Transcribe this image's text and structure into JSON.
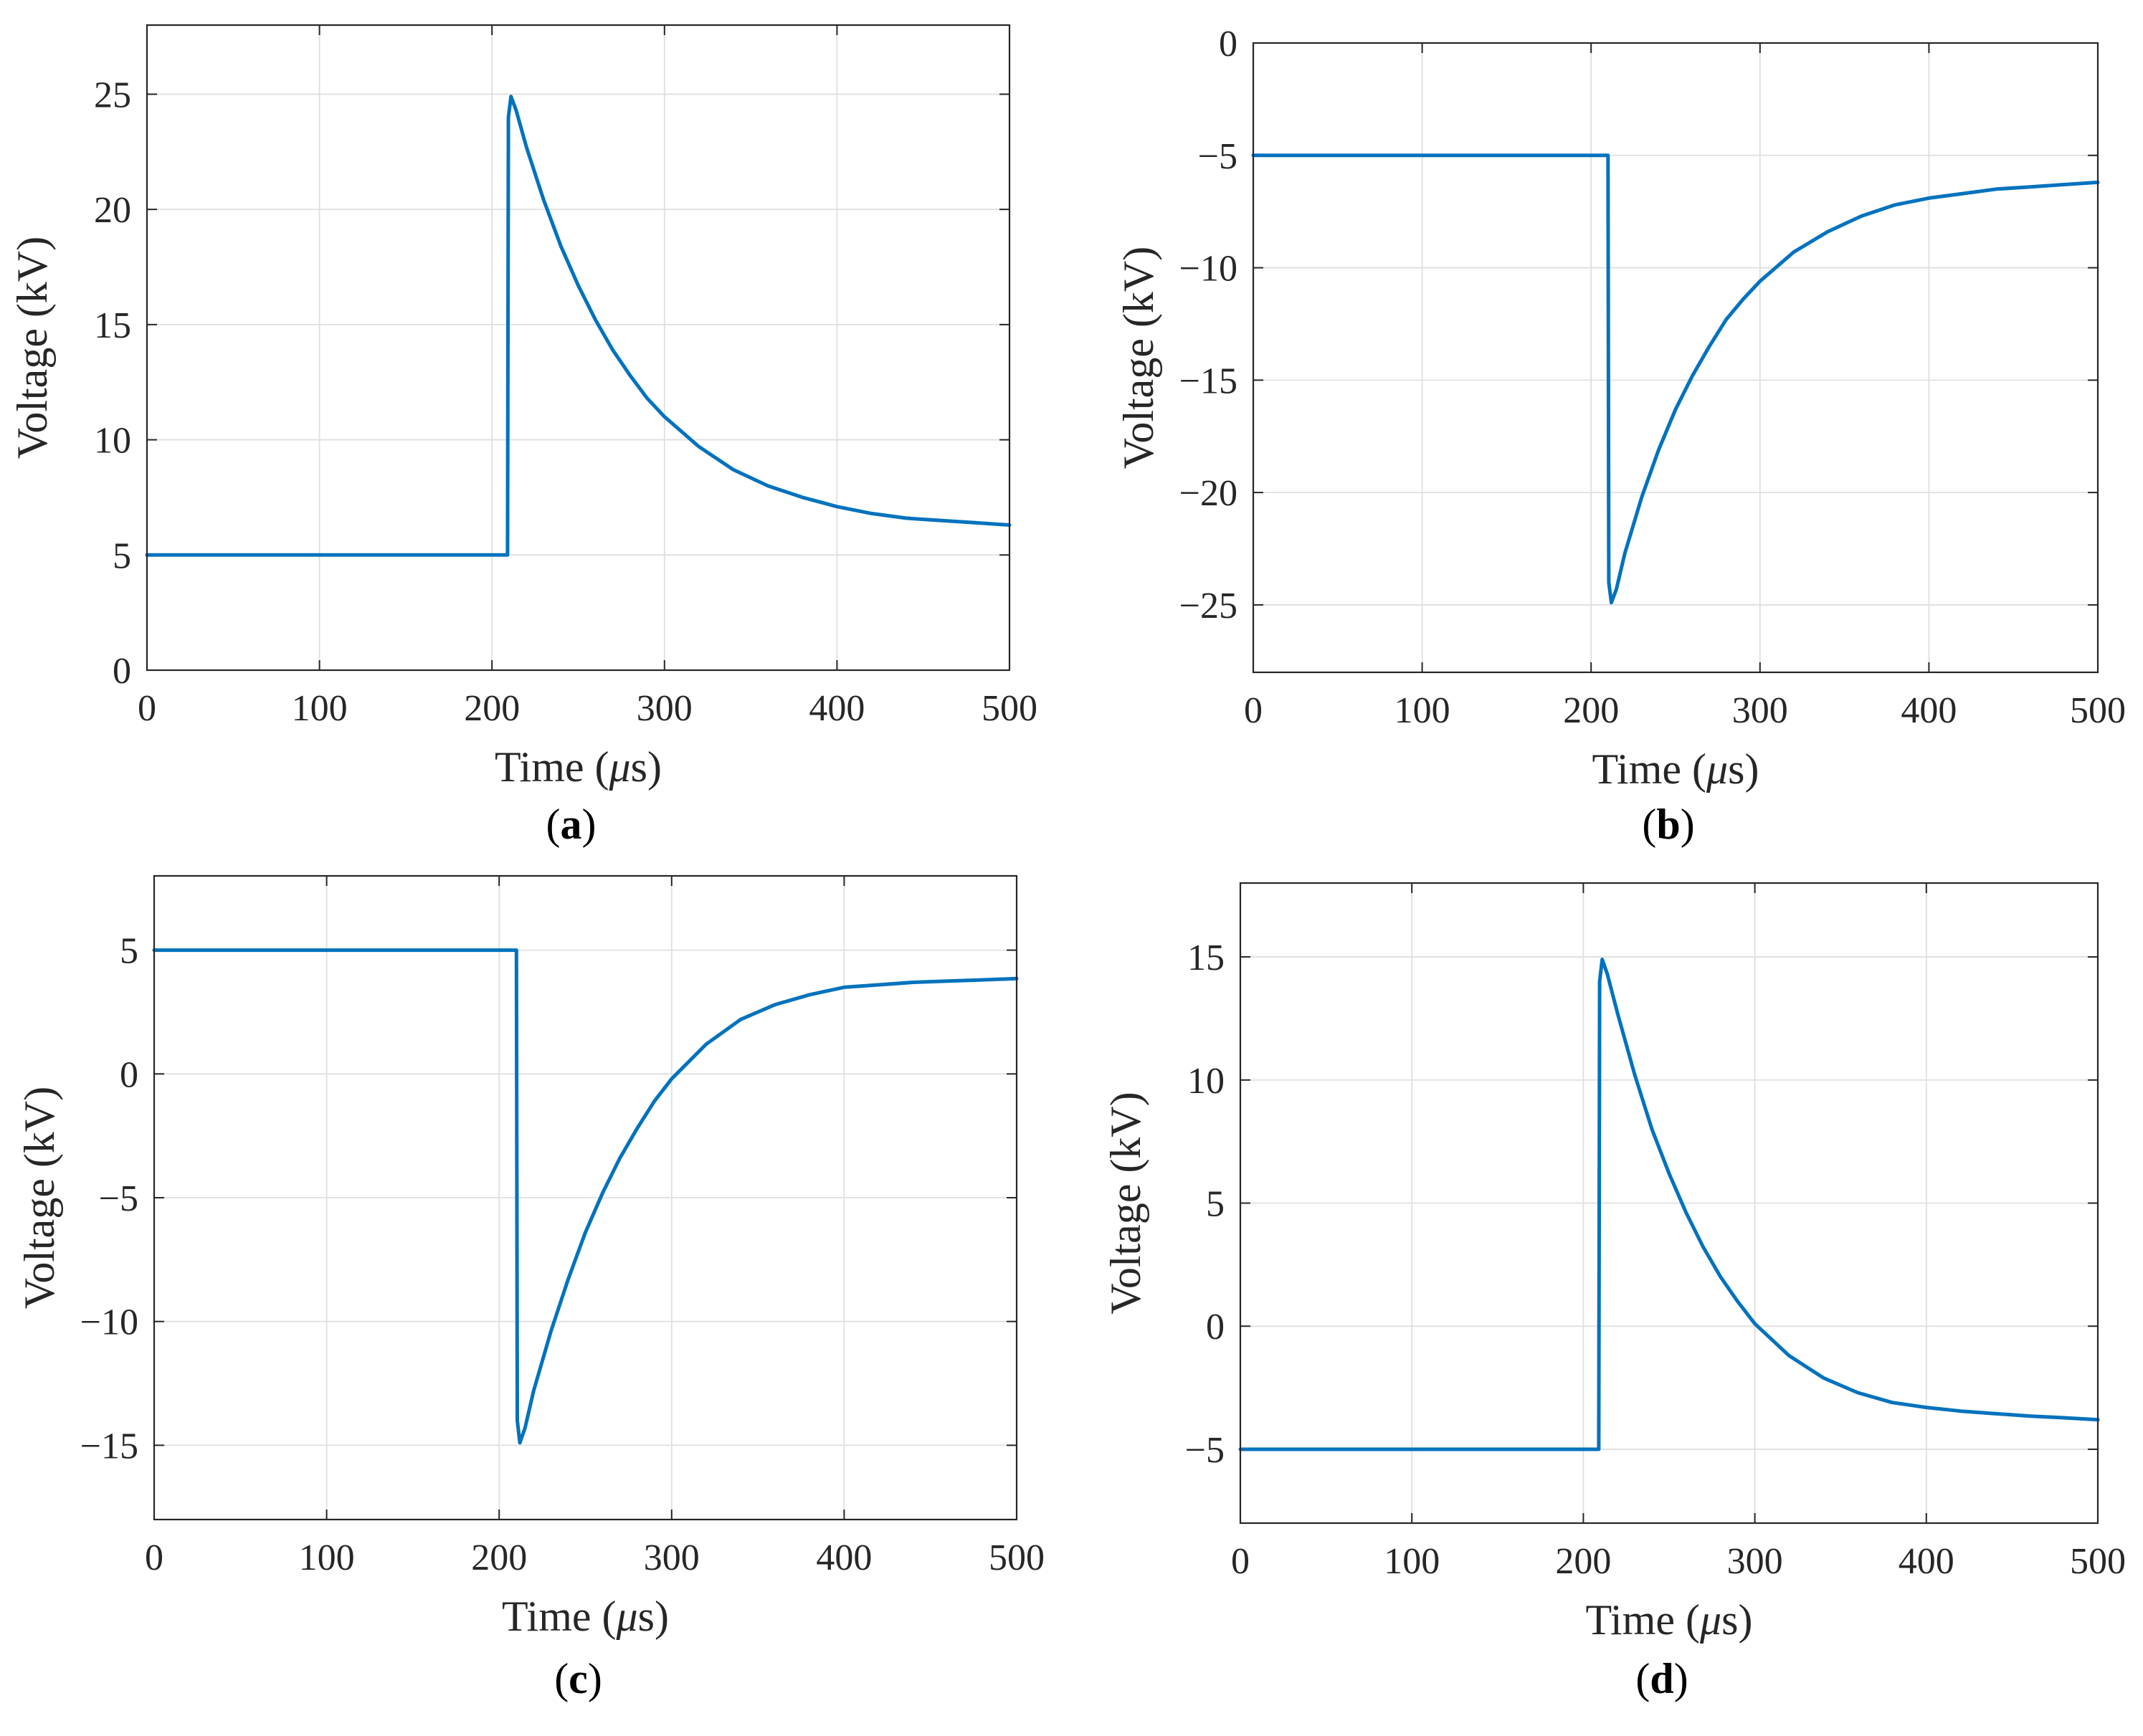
{
  "figure": {
    "line_color": "#0072bd"
  },
  "chart_data": [
    {
      "id": "a",
      "type": "line",
      "caption_letter": "a",
      "xlabel_prefix": "Time (",
      "xlabel_unit": "μ",
      "xlabel_suffix": "s)",
      "ylabel": "Voltage (kV)",
      "xlim": [
        0,
        500
      ],
      "ylim": [
        0,
        28
      ],
      "xticks": [
        0,
        100,
        200,
        300,
        400,
        500
      ],
      "yticks": [
        0,
        5,
        10,
        15,
        20,
        25
      ],
      "ytick_labels": [
        "0",
        "5",
        "10",
        "15",
        "20",
        "25"
      ],
      "grid": true,
      "series": [
        {
          "name": "Voltage",
          "x": [
            0,
            209,
            209.5,
            211,
            214,
            220,
            230,
            240,
            250,
            260,
            270,
            280,
            290,
            300,
            320,
            340,
            360,
            380,
            400,
            420,
            440,
            460,
            480,
            500
          ],
          "y": [
            5,
            5,
            24,
            24.9,
            24.3,
            22.7,
            20.4,
            18.4,
            16.7,
            15.2,
            13.9,
            12.8,
            11.8,
            11.0,
            9.7,
            8.7,
            8.0,
            7.5,
            7.1,
            6.8,
            6.6,
            6.5,
            6.4,
            6.3
          ]
        }
      ]
    },
    {
      "id": "b",
      "type": "line",
      "caption_letter": "b",
      "xlabel_prefix": "Time (",
      "xlabel_unit": "μ",
      "xlabel_suffix": "s)",
      "ylabel": "Voltage (kV)",
      "xlim": [
        0,
        500
      ],
      "ylim": [
        -28,
        0
      ],
      "xticks": [
        0,
        100,
        200,
        300,
        400,
        500
      ],
      "yticks": [
        0,
        -5,
        -10,
        -15,
        -20,
        -25
      ],
      "ytick_labels": [
        "0",
        "−5",
        "−10",
        "−15",
        "−20",
        "−25"
      ],
      "grid": true,
      "series": [
        {
          "name": "Voltage",
          "x": [
            0,
            210,
            210.5,
            212,
            215,
            220,
            230,
            240,
            250,
            260,
            270,
            280,
            290,
            300,
            320,
            340,
            360,
            380,
            400,
            420,
            440,
            460,
            480,
            500
          ],
          "y": [
            -5,
            -5,
            -24,
            -24.9,
            -24.3,
            -22.7,
            -20.2,
            -18.1,
            -16.3,
            -14.8,
            -13.5,
            -12.3,
            -11.4,
            -10.6,
            -9.3,
            -8.4,
            -7.7,
            -7.2,
            -6.9,
            -6.7,
            -6.5,
            -6.4,
            -6.3,
            -6.2
          ]
        }
      ]
    },
    {
      "id": "c",
      "type": "line",
      "caption_letter": "c",
      "xlabel_prefix": "Time (",
      "xlabel_unit": "μ",
      "xlabel_suffix": "s)",
      "ylabel": "Voltage (kV)",
      "xlim": [
        0,
        500
      ],
      "ylim": [
        -18,
        8
      ],
      "xticks": [
        0,
        100,
        200,
        300,
        400,
        500
      ],
      "yticks": [
        5,
        0,
        -5,
        -10,
        -15
      ],
      "ytick_labels": [
        "5",
        "0",
        "−5",
        "−10",
        "−15"
      ],
      "grid": true,
      "series": [
        {
          "name": "Voltage",
          "x": [
            0,
            210,
            210.5,
            212,
            215,
            220,
            230,
            240,
            250,
            260,
            270,
            280,
            290,
            300,
            320,
            340,
            360,
            380,
            400,
            420,
            440,
            460,
            480,
            500
          ],
          "y": [
            5,
            5,
            -14,
            -14.9,
            -14.3,
            -12.8,
            -10.4,
            -8.3,
            -6.4,
            -4.8,
            -3.4,
            -2.2,
            -1.1,
            -0.2,
            1.2,
            2.2,
            2.8,
            3.2,
            3.5,
            3.6,
            3.7,
            3.75,
            3.8,
            3.85
          ]
        }
      ]
    },
    {
      "id": "d",
      "type": "line",
      "caption_letter": "d",
      "xlabel_prefix": "Time (",
      "xlabel_unit": "μ",
      "xlabel_suffix": "s)",
      "ylabel": "Voltage (kV)",
      "xlim": [
        0,
        500
      ],
      "ylim": [
        -8,
        18
      ],
      "xticks": [
        0,
        100,
        200,
        300,
        400,
        500
      ],
      "yticks": [
        15,
        10,
        5,
        0,
        -5
      ],
      "ytick_labels": [
        "15",
        "10",
        "5",
        "0",
        "−5"
      ],
      "grid": true,
      "series": [
        {
          "name": "Voltage",
          "x": [
            0,
            209,
            209.5,
            211,
            214,
            220,
            230,
            240,
            250,
            260,
            270,
            280,
            290,
            300,
            320,
            340,
            360,
            380,
            400,
            420,
            440,
            460,
            480,
            500
          ],
          "y": [
            -5,
            -5,
            14,
            14.9,
            14.3,
            12.7,
            10.2,
            8.0,
            6.2,
            4.6,
            3.2,
            2.0,
            1.0,
            0.1,
            -1.2,
            -2.1,
            -2.7,
            -3.1,
            -3.3,
            -3.45,
            -3.55,
            -3.65,
            -3.72,
            -3.8
          ]
        }
      ]
    }
  ]
}
